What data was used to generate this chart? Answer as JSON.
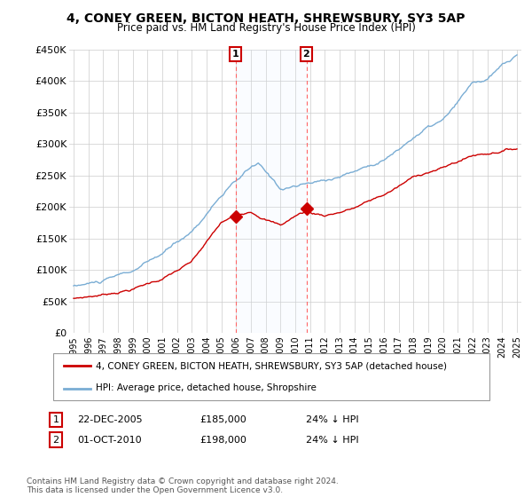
{
  "title": "4, CONEY GREEN, BICTON HEATH, SHREWSBURY, SY3 5AP",
  "subtitle": "Price paid vs. HM Land Registry's House Price Index (HPI)",
  "ylim": [
    0,
    450000
  ],
  "yticks": [
    0,
    50000,
    100000,
    150000,
    200000,
    250000,
    300000,
    350000,
    400000,
    450000
  ],
  "ytick_labels": [
    "£0",
    "£50K",
    "£100K",
    "£150K",
    "£200K",
    "£250K",
    "£300K",
    "£350K",
    "£400K",
    "£450K"
  ],
  "hpi_color": "#7aadd4",
  "price_color": "#cc0000",
  "sale1_year": 2005.97,
  "sale1_value": 185000,
  "sale2_year": 2010.75,
  "sale2_value": 198000,
  "legend_label_price": "4, CONEY GREEN, BICTON HEATH, SHREWSBURY, SY3 5AP (detached house)",
  "legend_label_hpi": "HPI: Average price, detached house, Shropshire",
  "annotation1_num": "1",
  "annotation1_date": "22-DEC-2005",
  "annotation1_price": "£185,000",
  "annotation1_hpi": "24% ↓ HPI",
  "annotation2_num": "2",
  "annotation2_date": "01-OCT-2010",
  "annotation2_price": "£198,000",
  "annotation2_hpi": "24% ↓ HPI",
  "footer": "Contains HM Land Registry data © Crown copyright and database right 2024.\nThis data is licensed under the Open Government Licence v3.0.",
  "background_color": "#ffffff",
  "grid_color": "#cccccc",
  "span_color": "#ddeeff"
}
